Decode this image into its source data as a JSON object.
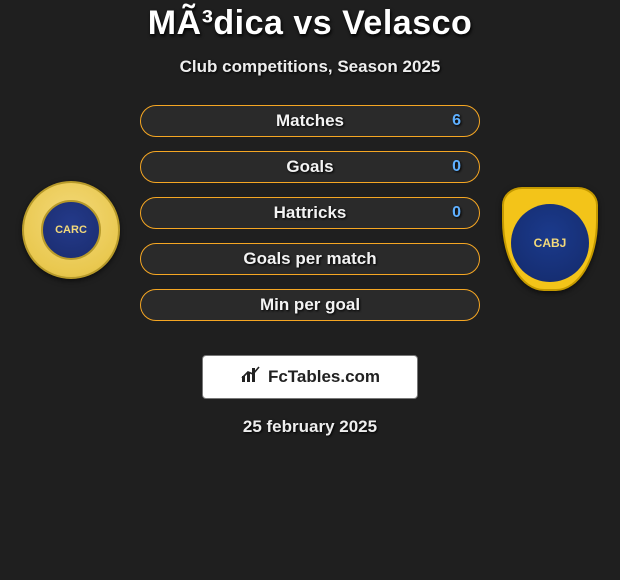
{
  "header": {
    "title": "MÃ³dica vs Velasco",
    "subtitle": "Club competitions, Season 2025"
  },
  "flags": {
    "left_fill": "#f0f0f0",
    "right_fill": "#f0f0f0"
  },
  "badges": {
    "left_text": "CARC",
    "right_text": "CABJ"
  },
  "stats": {
    "border_color": "#f5a623",
    "bg_color": "#2a2a2a",
    "value_color": "#5fb0ff",
    "rows": [
      {
        "left": "",
        "label": "Matches",
        "right": "6"
      },
      {
        "left": "",
        "label": "Goals",
        "right": "0"
      },
      {
        "left": "",
        "label": "Hattricks",
        "right": "0"
      },
      {
        "left": "",
        "label": "Goals per match",
        "right": ""
      },
      {
        "left": "",
        "label": "Min per goal",
        "right": ""
      }
    ]
  },
  "brand": {
    "text": "FcTables.com"
  },
  "footer": {
    "date": "25 february 2025"
  }
}
